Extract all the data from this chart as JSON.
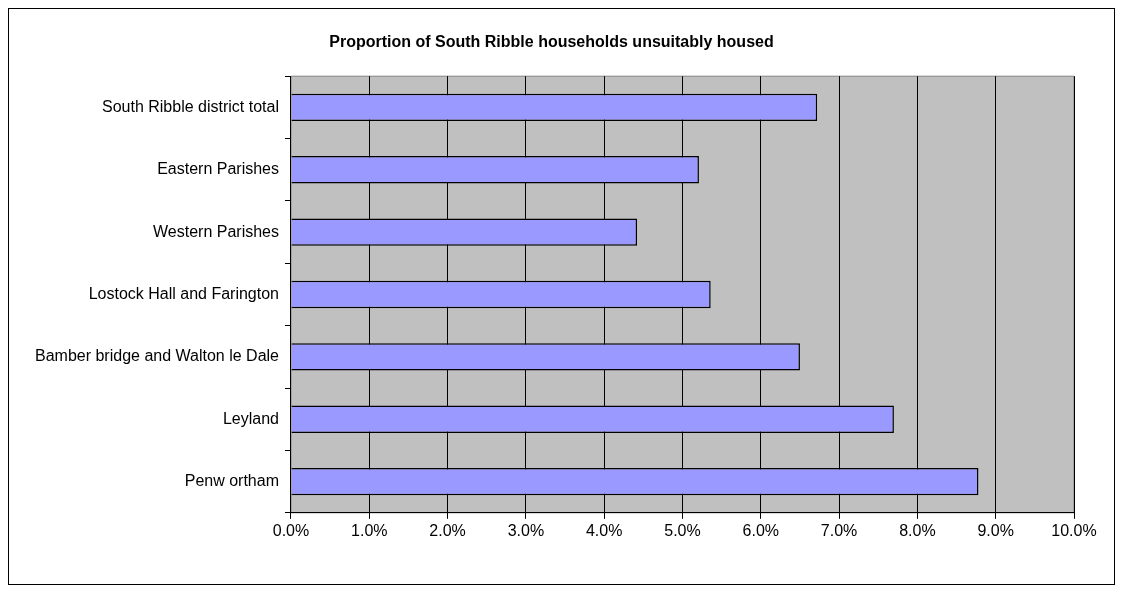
{
  "chart_data": {
    "type": "bar",
    "orientation": "horizontal",
    "title": "Proportion of South Ribble households unsuitably housed",
    "categories": [
      "South Ribble district total",
      "Eastern Parishes",
      "Western Parishes",
      "Lostock Hall and Farington",
      "Bamber bridge and Walton le Dale",
      "Leyland",
      "Penw ortham"
    ],
    "values": [
      6.72,
      5.21,
      4.42,
      5.36,
      6.5,
      7.7,
      8.78
    ],
    "color": "#9999ff",
    "xlim": [
      0,
      10
    ],
    "xticks": [
      {
        "value": 0,
        "label": "0.0%"
      },
      {
        "value": 1,
        "label": "1.0%"
      },
      {
        "value": 2,
        "label": "2.0%"
      },
      {
        "value": 3,
        "label": "3.0%"
      },
      {
        "value": 4,
        "label": "4.0%"
      },
      {
        "value": 5,
        "label": "5.0%"
      },
      {
        "value": 6,
        "label": "6.0%"
      },
      {
        "value": 7,
        "label": "7.0%"
      },
      {
        "value": 8,
        "label": "8.0%"
      },
      {
        "value": 9,
        "label": "9.0%"
      },
      {
        "value": 10,
        "label": "10.0%"
      }
    ],
    "grid": "x",
    "legend": false
  }
}
